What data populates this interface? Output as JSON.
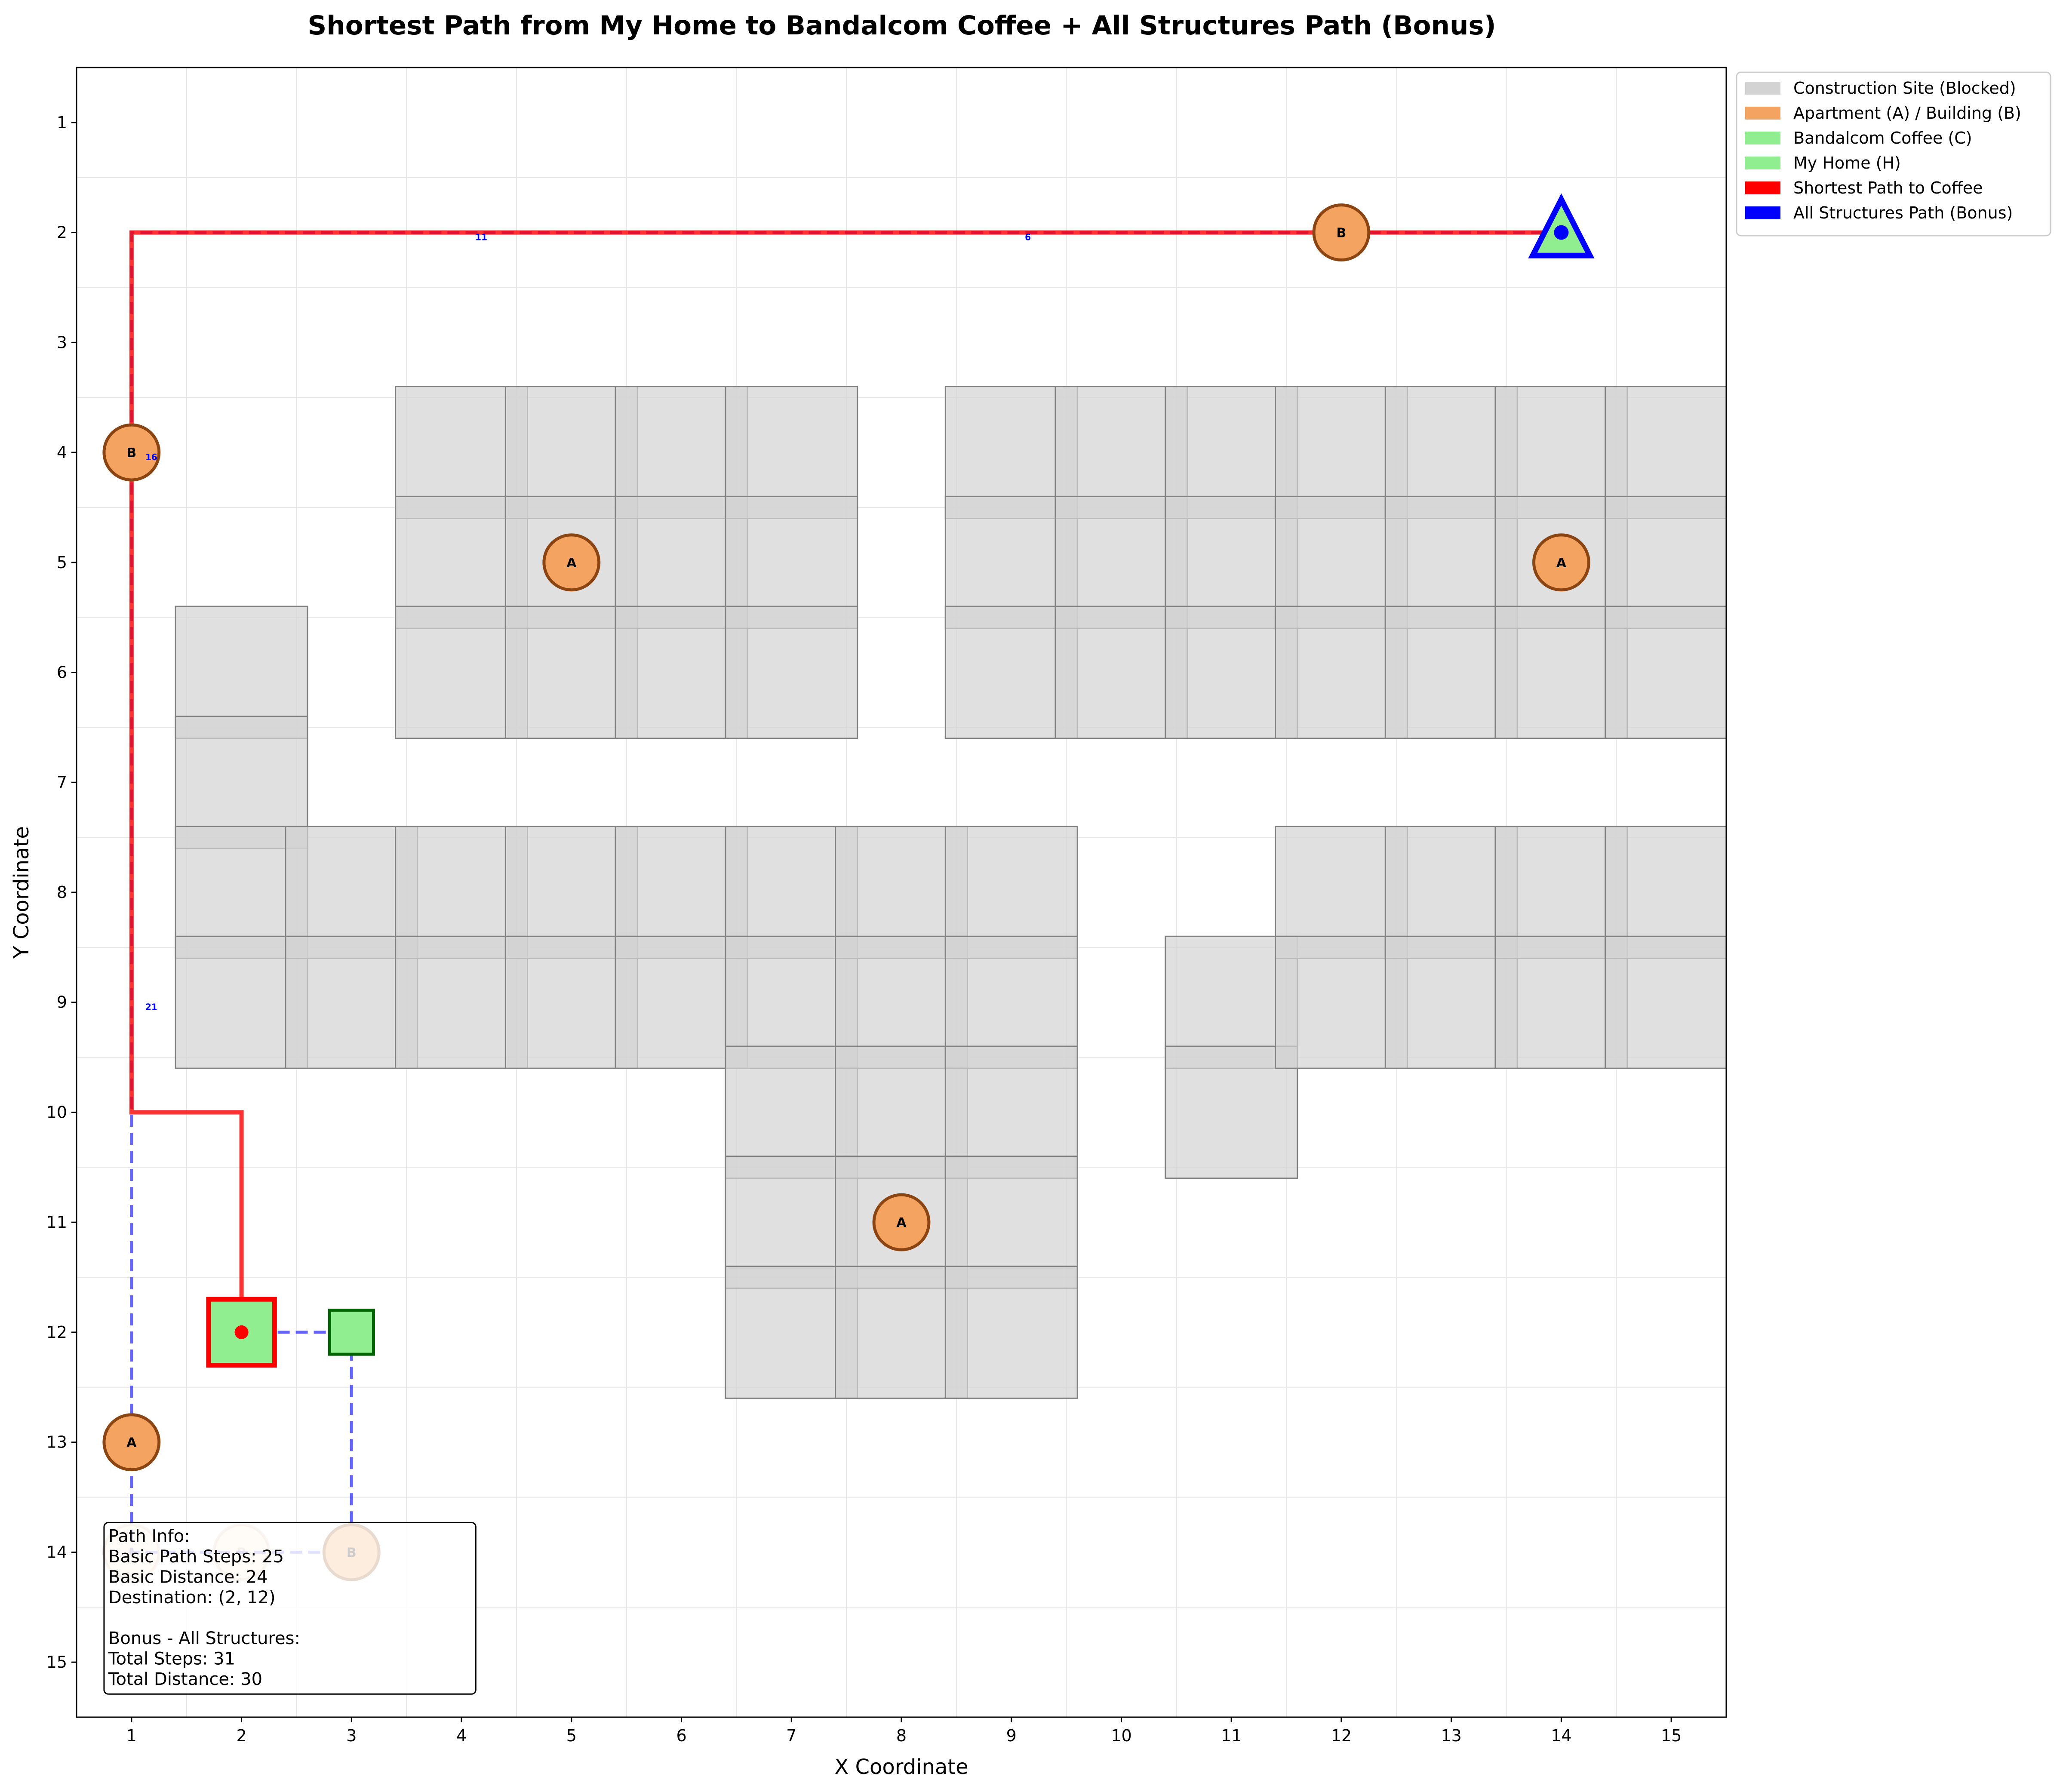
{
  "chart_data": {
    "type": "grid-path-map",
    "title": "Shortest Path from My Home to Bandalcom Coffee + All Structures Path (Bonus)",
    "xlabel": "X Coordinate",
    "ylabel": "Y Coordinate",
    "xlim": [
      0.5,
      15.5
    ],
    "ylim": [
      15.5,
      0.5
    ],
    "y_inverted": true,
    "grid": true,
    "xticks": [
      1,
      2,
      3,
      4,
      5,
      6,
      7,
      8,
      9,
      10,
      11,
      12,
      13,
      14,
      15
    ],
    "yticks": [
      1,
      2,
      3,
      4,
      5,
      6,
      7,
      8,
      9,
      10,
      11,
      12,
      13,
      14,
      15
    ],
    "legend": {
      "position": "outside-upper-right",
      "entries": [
        {
          "label": "Construction Site (Blocked)",
          "color": "#d3d3d3"
        },
        {
          "label": "Apartment (A) / Building (B)",
          "color": "#f4a460"
        },
        {
          "label": "Bandalcom Coffee (C)",
          "color": "#90ee90"
        },
        {
          "label": "My Home (H)",
          "color": "#90ee90"
        },
        {
          "label": "Shortest Path to Coffee",
          "color": "#ff0000"
        },
        {
          "label": "All Structures Path (Bonus)",
          "color": "#0000ff"
        }
      ]
    },
    "construction_sites": [
      [
        2,
        6
      ],
      [
        2,
        7
      ],
      [
        2,
        8
      ],
      [
        2,
        9
      ],
      [
        3,
        8
      ],
      [
        3,
        9
      ],
      [
        4,
        4
      ],
      [
        4,
        5
      ],
      [
        4,
        6
      ],
      [
        4,
        8
      ],
      [
        4,
        9
      ],
      [
        5,
        4
      ],
      [
        5,
        5
      ],
      [
        5,
        6
      ],
      [
        5,
        8
      ],
      [
        5,
        9
      ],
      [
        6,
        4
      ],
      [
        6,
        5
      ],
      [
        6,
        6
      ],
      [
        6,
        8
      ],
      [
        6,
        9
      ],
      [
        7,
        4
      ],
      [
        7,
        5
      ],
      [
        7,
        6
      ],
      [
        7,
        8
      ],
      [
        7,
        9
      ],
      [
        7,
        10
      ],
      [
        7,
        11
      ],
      [
        7,
        12
      ],
      [
        8,
        8
      ],
      [
        8,
        9
      ],
      [
        8,
        10
      ],
      [
        8,
        11
      ],
      [
        8,
        12
      ],
      [
        9,
        4
      ],
      [
        9,
        5
      ],
      [
        9,
        6
      ],
      [
        9,
        8
      ],
      [
        9,
        9
      ],
      [
        9,
        10
      ],
      [
        9,
        11
      ],
      [
        9,
        12
      ],
      [
        10,
        4
      ],
      [
        10,
        5
      ],
      [
        10,
        6
      ],
      [
        11,
        4
      ],
      [
        11,
        5
      ],
      [
        11,
        6
      ],
      [
        11,
        9
      ],
      [
        11,
        10
      ],
      [
        12,
        4
      ],
      [
        12,
        5
      ],
      [
        12,
        6
      ],
      [
        12,
        8
      ],
      [
        12,
        9
      ],
      [
        13,
        4
      ],
      [
        13,
        5
      ],
      [
        13,
        6
      ],
      [
        13,
        8
      ],
      [
        13,
        9
      ],
      [
        14,
        4
      ],
      [
        14,
        5
      ],
      [
        14,
        6
      ],
      [
        14,
        8
      ],
      [
        14,
        9
      ],
      [
        15,
        4
      ],
      [
        15,
        5
      ],
      [
        15,
        6
      ],
      [
        15,
        8
      ],
      [
        15,
        9
      ]
    ],
    "structures": [
      {
        "type": "B",
        "x": 12,
        "y": 2
      },
      {
        "type": "B",
        "x": 1,
        "y": 4
      },
      {
        "type": "A",
        "x": 5,
        "y": 5
      },
      {
        "type": "A",
        "x": 14,
        "y": 5
      },
      {
        "type": "A",
        "x": 8,
        "y": 11
      },
      {
        "type": "A",
        "x": 1,
        "y": 13
      },
      {
        "type": "A",
        "x": 1,
        "y": 14
      },
      {
        "type": "B",
        "x": 2,
        "y": 14
      },
      {
        "type": "B",
        "x": 3,
        "y": 14
      }
    ],
    "home": {
      "x": 14,
      "y": 2
    },
    "coffee_shops": [
      {
        "x": 2,
        "y": 12,
        "destination": true
      },
      {
        "x": 3,
        "y": 12,
        "destination": false
      }
    ],
    "shortest_path": [
      [
        14,
        2
      ],
      [
        1,
        2
      ],
      [
        1,
        10
      ],
      [
        2,
        10
      ],
      [
        2,
        12
      ]
    ],
    "all_structures_path": [
      [
        14,
        2
      ],
      [
        1,
        2
      ],
      [
        1,
        14
      ],
      [
        3,
        14
      ],
      [
        3,
        12
      ],
      [
        2,
        12
      ]
    ],
    "step_labels": [
      {
        "text": "6",
        "x": 9.15,
        "y": 2.07
      },
      {
        "text": "11",
        "x": 4.18,
        "y": 2.07
      },
      {
        "text": "16",
        "x": 1.18,
        "y": 4.07
      },
      {
        "text": "21",
        "x": 1.18,
        "y": 9.07
      }
    ],
    "info_box": {
      "lines": [
        "Path Info:",
        "Basic Path Steps: 25",
        "Basic Distance: 24",
        "Destination: (2, 12)",
        "",
        "Bonus - All Structures:",
        "Total Steps: 31",
        "Total Distance: 30"
      ]
    }
  }
}
